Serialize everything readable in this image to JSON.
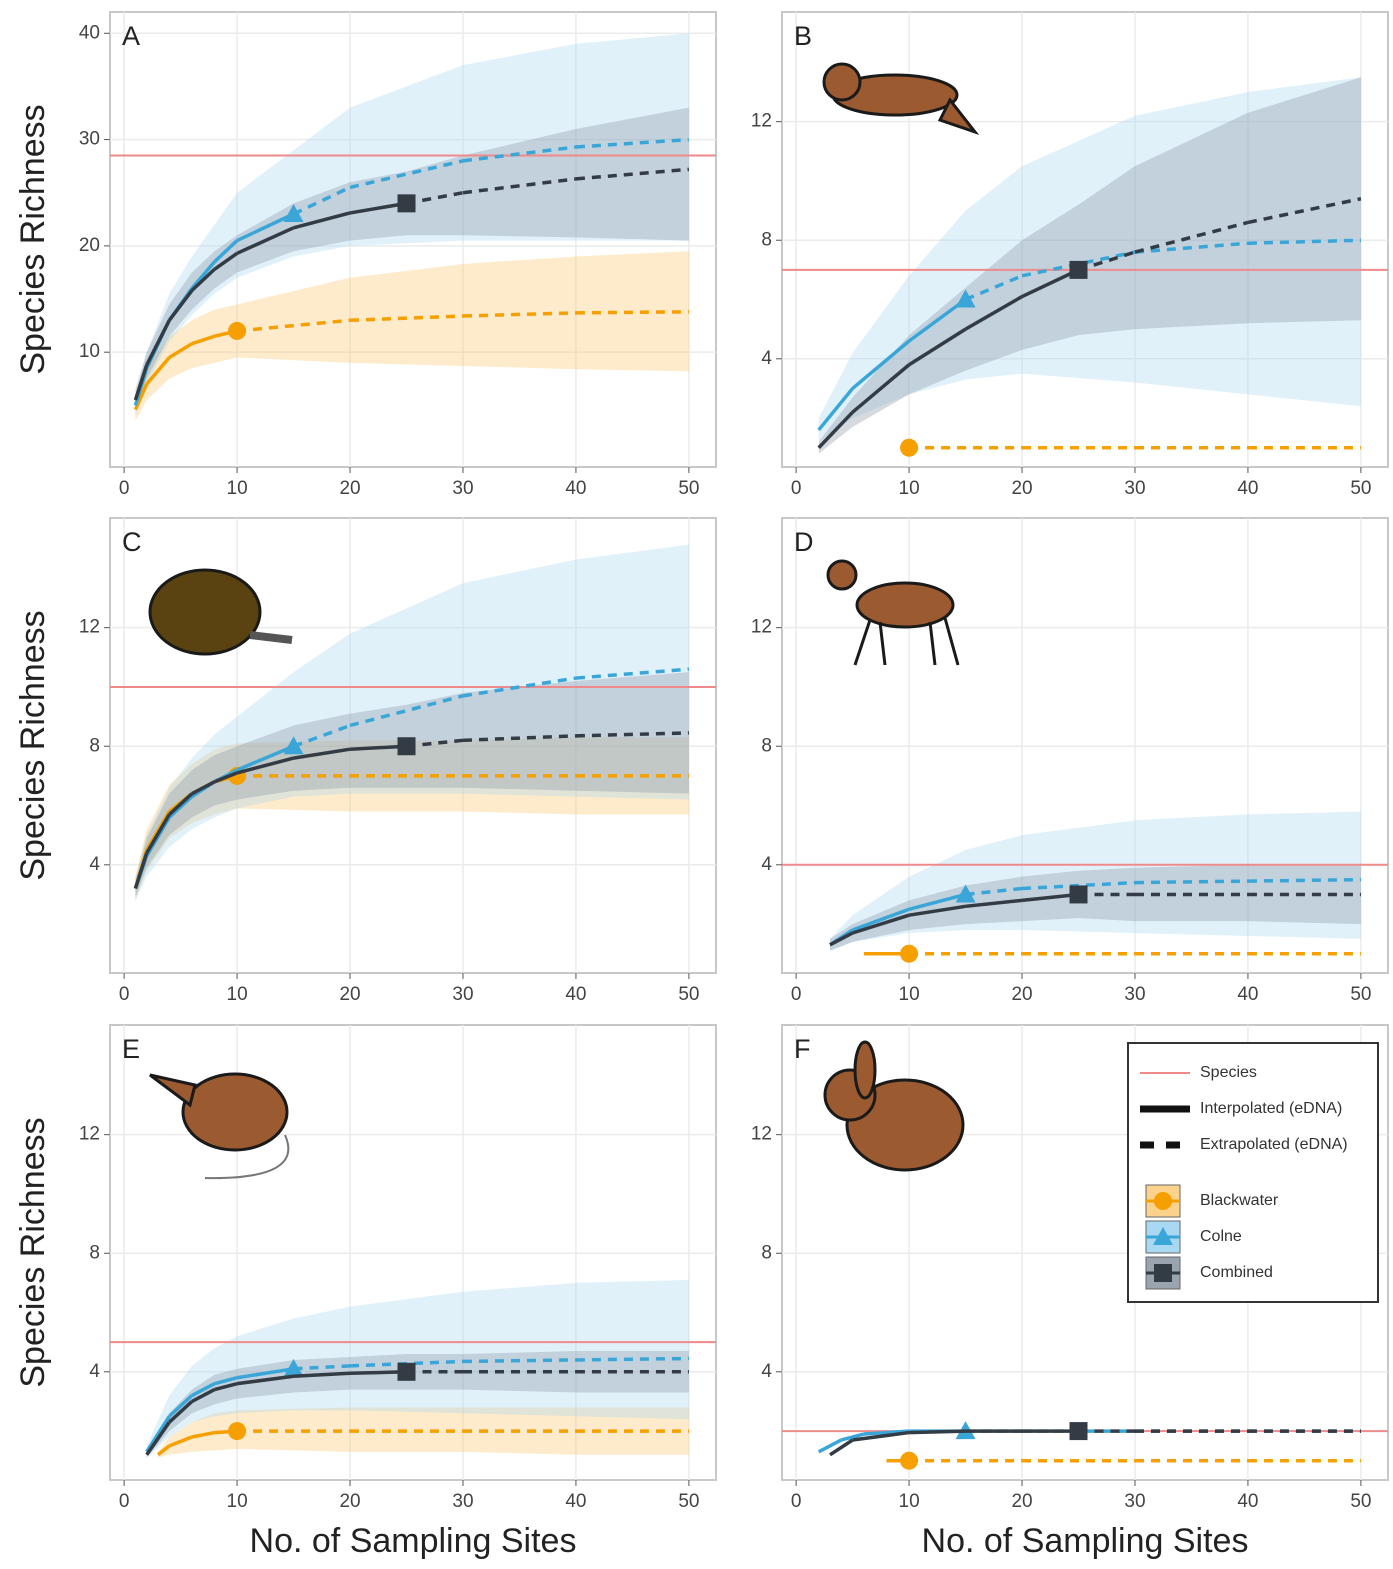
{
  "chart_data": [
    {
      "type": "line",
      "panel": "A",
      "ylabel": "Species Richness",
      "xlim": [
        -1.25,
        52.4
      ],
      "ylim": [
        -0.8,
        42
      ],
      "xticks": [
        0,
        10,
        20,
        30,
        40,
        50
      ],
      "yticks": [
        10,
        20,
        30,
        40
      ],
      "grid": true,
      "species": 28.5,
      "series": [
        {
          "color": "#f5a000",
          "band_color": "#fbc56a",
          "marker": "circle",
          "observed": 10,
          "x": [
            1,
            2,
            4,
            6,
            8,
            10,
            20,
            30,
            40,
            50
          ],
          "values": [
            4.6,
            7,
            9.5,
            10.8,
            11.5,
            12,
            13,
            13.4,
            13.7,
            13.8
          ],
          "lower": [
            3.5,
            5.5,
            7.5,
            8.5,
            9,
            9.5,
            9,
            8.7,
            8.4,
            8.2
          ],
          "upper": [
            5.8,
            8.5,
            11.5,
            13,
            14,
            14.5,
            17,
            18.3,
            19,
            19.5
          ]
        },
        {
          "color": "#3aa6d8",
          "band_color": "#a9d8f2",
          "marker": "triangle",
          "observed": 15,
          "x": [
            1,
            2,
            4,
            6,
            8,
            10,
            15,
            20,
            30,
            40,
            50
          ],
          "values": [
            5,
            8.5,
            13,
            16,
            18.5,
            20.5,
            23,
            25.5,
            28,
            29.3,
            30
          ],
          "lower": [
            4,
            7,
            11,
            13.5,
            15.5,
            17,
            19,
            20,
            20.5,
            20.5,
            20.5
          ],
          "upper": [
            6,
            10,
            15.5,
            19,
            22,
            25,
            29,
            33,
            37,
            39,
            40
          ]
        },
        {
          "color": "#333b45",
          "band_color": "#8a96a3",
          "marker": "square",
          "observed": 25,
          "x": [
            1,
            2,
            4,
            6,
            8,
            10,
            15,
            20,
            25,
            30,
            40,
            50
          ],
          "values": [
            5.5,
            8.8,
            13,
            15.8,
            17.8,
            19.3,
            21.7,
            23.1,
            24,
            25,
            26.3,
            27.2
          ],
          "lower": [
            4.5,
            7.5,
            11.5,
            14,
            16,
            17.5,
            19.5,
            20.5,
            21,
            21,
            20.8,
            20.5
          ],
          "upper": [
            6.5,
            10,
            14.5,
            17.5,
            19.5,
            21,
            24,
            26,
            27,
            28.5,
            31,
            33
          ]
        }
      ]
    },
    {
      "type": "line",
      "panel": "B",
      "xlim": [
        -1.25,
        52.4
      ],
      "ylim": [
        0.35,
        15.7
      ],
      "xticks": [
        0,
        10,
        20,
        30,
        40,
        50
      ],
      "yticks": [
        4,
        8,
        12
      ],
      "grid": true,
      "species": 7,
      "series": [
        {
          "color": "#f5a000",
          "marker": "circle",
          "observed": 10,
          "x": [
            10,
            20,
            30,
            40,
            50
          ],
          "values": [
            1,
            1,
            1,
            1,
            1
          ]
        },
        {
          "color": "#3aa6d8",
          "band_color": "#a9d8f2",
          "marker": "triangle",
          "observed": 15,
          "x": [
            2,
            5,
            10,
            15,
            20,
            30,
            40,
            50
          ],
          "values": [
            1.6,
            3,
            4.6,
            6,
            6.8,
            7.6,
            7.9,
            8
          ],
          "lower": [
            1.2,
            2,
            2.8,
            3.3,
            3.5,
            3.2,
            2.8,
            2.4
          ],
          "upper": [
            2,
            4.2,
            6.8,
            9,
            10.5,
            12.2,
            13,
            13.5
          ]
        },
        {
          "color": "#333b45",
          "band_color": "#8a96a3",
          "marker": "square",
          "observed": 25,
          "x": [
            2,
            5,
            10,
            15,
            20,
            25,
            30,
            40,
            50
          ],
          "values": [
            1,
            2.2,
            3.8,
            5,
            6.1,
            7,
            7.6,
            8.6,
            9.4
          ],
          "lower": [
            0.8,
            1.7,
            2.8,
            3.6,
            4.3,
            4.8,
            5,
            5.2,
            5.3
          ],
          "upper": [
            1.2,
            2.7,
            4.8,
            6.4,
            8,
            9.2,
            10.5,
            12.3,
            13.5
          ]
        }
      ]
    },
    {
      "type": "line",
      "panel": "C",
      "ylabel": "Species Richness",
      "xlim": [
        -1.25,
        52.4
      ],
      "ylim": [
        0.35,
        15.7
      ],
      "xticks": [
        0,
        10,
        20,
        30,
        40,
        50
      ],
      "yticks": [
        4,
        8,
        12
      ],
      "grid": true,
      "species": 10,
      "series": [
        {
          "color": "#f5a000",
          "band_color": "#fbc56a",
          "marker": "circle",
          "observed": 10,
          "x": [
            1,
            2,
            4,
            6,
            8,
            10,
            20,
            30,
            40,
            50
          ],
          "values": [
            3.2,
            4.5,
            5.8,
            6.4,
            6.8,
            7,
            7,
            7,
            7,
            7
          ],
          "lower": [
            2.8,
            3.8,
            4.9,
            5.4,
            5.7,
            5.9,
            5.8,
            5.8,
            5.7,
            5.7
          ],
          "upper": [
            3.6,
            5.2,
            6.7,
            7.4,
            7.9,
            8.1,
            8.2,
            8.2,
            8.3,
            8.3
          ]
        },
        {
          "color": "#3aa6d8",
          "band_color": "#a9d8f2",
          "marker": "triangle",
          "observed": 15,
          "x": [
            1,
            2,
            4,
            6,
            8,
            10,
            15,
            20,
            30,
            40,
            50
          ],
          "values": [
            3.2,
            4.3,
            5.6,
            6.3,
            6.8,
            7.2,
            8,
            8.7,
            9.7,
            10.3,
            10.6
          ],
          "lower": [
            2.8,
            3.6,
            4.6,
            5.2,
            5.6,
            5.9,
            6.3,
            6.4,
            6.4,
            6.3,
            6.2
          ],
          "upper": [
            3.6,
            5,
            6.6,
            7.6,
            8.4,
            9,
            10.5,
            11.8,
            13.5,
            14.3,
            14.8
          ]
        },
        {
          "color": "#333b45",
          "band_color": "#8a96a3",
          "marker": "square",
          "observed": 25,
          "x": [
            1,
            2,
            4,
            6,
            8,
            10,
            15,
            20,
            25,
            30,
            40,
            50
          ],
          "values": [
            3.2,
            4.4,
            5.7,
            6.4,
            6.8,
            7.1,
            7.6,
            7.9,
            8,
            8.2,
            8.35,
            8.45
          ],
          "lower": [
            2.9,
            3.9,
            5,
            5.6,
            6,
            6.2,
            6.5,
            6.6,
            6.6,
            6.6,
            6.5,
            6.4
          ],
          "upper": [
            3.5,
            4.9,
            6.4,
            7.2,
            7.7,
            8,
            8.7,
            9.1,
            9.4,
            9.8,
            10.2,
            10.5
          ]
        }
      ]
    },
    {
      "type": "line",
      "panel": "D",
      "xlim": [
        -1.25,
        52.4
      ],
      "ylim": [
        0.35,
        15.7
      ],
      "xticks": [
        0,
        10,
        20,
        30,
        40,
        50
      ],
      "yticks": [
        4,
        8,
        12
      ],
      "grid": true,
      "species": 4,
      "series": [
        {
          "color": "#f5a000",
          "marker": "circle",
          "observed": 10,
          "x": [
            6,
            10,
            20,
            30,
            40,
            50
          ],
          "values": [
            1,
            1,
            1,
            1,
            1,
            1
          ]
        },
        {
          "color": "#3aa6d8",
          "band_color": "#a9d8f2",
          "marker": "triangle",
          "observed": 15,
          "x": [
            3,
            5,
            10,
            15,
            20,
            30,
            40,
            50
          ],
          "values": [
            1.3,
            1.8,
            2.5,
            3,
            3.2,
            3.4,
            3.45,
            3.5
          ],
          "lower": [
            1.1,
            1.4,
            1.7,
            1.8,
            1.8,
            1.7,
            1.6,
            1.5
          ],
          "upper": [
            1.5,
            2.3,
            3.6,
            4.5,
            5,
            5.5,
            5.7,
            5.8
          ]
        },
        {
          "color": "#333b45",
          "band_color": "#8a96a3",
          "marker": "square",
          "observed": 25,
          "x": [
            3,
            5,
            10,
            15,
            20,
            25,
            30,
            40,
            50
          ],
          "values": [
            1.3,
            1.7,
            2.3,
            2.6,
            2.8,
            3,
            3,
            3,
            3
          ],
          "lower": [
            1.1,
            1.4,
            1.8,
            2,
            2.1,
            2.2,
            2.1,
            2.1,
            2
          ],
          "upper": [
            1.5,
            2,
            2.8,
            3.3,
            3.6,
            3.8,
            3.9,
            4,
            4
          ]
        }
      ]
    },
    {
      "type": "line",
      "panel": "E",
      "ylabel": "Species Richness",
      "xlabel": "No. of Sampling Sites",
      "xlim": [
        -1.25,
        52.4
      ],
      "ylim": [
        0.35,
        15.7
      ],
      "xticks": [
        0,
        10,
        20,
        30,
        40,
        50
      ],
      "yticks": [
        4,
        8,
        12
      ],
      "grid": true,
      "species": 5,
      "series": [
        {
          "color": "#f5a000",
          "band_color": "#fbc56a",
          "marker": "circle",
          "observed": 10,
          "x": [
            3,
            4,
            6,
            8,
            10,
            20,
            30,
            40,
            50
          ],
          "values": [
            1.2,
            1.5,
            1.8,
            1.95,
            2,
            2,
            2,
            2,
            2
          ],
          "lower": [
            1.1,
            1.2,
            1.3,
            1.35,
            1.4,
            1.3,
            1.3,
            1.2,
            1.2
          ],
          "upper": [
            1.3,
            1.8,
            2.3,
            2.6,
            2.7,
            2.8,
            2.8,
            2.8,
            2.8
          ]
        },
        {
          "color": "#3aa6d8",
          "band_color": "#a9d8f2",
          "marker": "triangle",
          "observed": 15,
          "x": [
            2,
            4,
            6,
            8,
            10,
            15,
            20,
            30,
            40,
            50
          ],
          "values": [
            1.3,
            2.5,
            3.2,
            3.6,
            3.8,
            4.1,
            4.2,
            4.35,
            4.4,
            4.45
          ],
          "lower": [
            1.1,
            1.8,
            2.3,
            2.5,
            2.6,
            2.7,
            2.7,
            2.6,
            2.5,
            2.4
          ],
          "upper": [
            1.5,
            3.2,
            4.2,
            4.8,
            5.2,
            5.8,
            6.2,
            6.7,
            7,
            7.1
          ]
        },
        {
          "color": "#333b45",
          "band_color": "#8a96a3",
          "marker": "square",
          "observed": 25,
          "x": [
            2,
            4,
            6,
            8,
            10,
            15,
            20,
            25,
            30,
            40,
            50
          ],
          "values": [
            1.2,
            2.3,
            3,
            3.4,
            3.6,
            3.85,
            3.95,
            4,
            4,
            4,
            4
          ],
          "lower": [
            1.1,
            2,
            2.6,
            2.9,
            3.1,
            3.3,
            3.4,
            3.4,
            3.4,
            3.3,
            3.3
          ],
          "upper": [
            1.3,
            2.6,
            3.4,
            3.9,
            4.1,
            4.4,
            4.5,
            4.6,
            4.6,
            4.7,
            4.7
          ]
        }
      ]
    },
    {
      "type": "line",
      "panel": "F",
      "xlabel": "No. of Sampling Sites",
      "xlim": [
        -1.25,
        52.4
      ],
      "ylim": [
        0.35,
        15.7
      ],
      "xticks": [
        0,
        10,
        20,
        30,
        40,
        50
      ],
      "yticks": [
        4,
        8,
        12
      ],
      "grid": true,
      "species": 2,
      "legend": {
        "position": "top-right",
        "species": "Species",
        "interpolated": "Interpolated (eDNA)",
        "extrapolated": "Extrapolated (eDNA)"
      },
      "series": [
        {
          "name": "Blackwater",
          "color": "#f5a000",
          "marker": "circle",
          "observed": 10,
          "x": [
            8,
            10,
            20,
            30,
            40,
            50
          ],
          "values": [
            1,
            1,
            1,
            1,
            1,
            1
          ]
        },
        {
          "name": "Colne",
          "color": "#3aa6d8",
          "marker": "triangle",
          "observed": 15,
          "x": [
            2,
            4,
            6,
            10,
            15,
            20,
            30,
            40,
            50
          ],
          "values": [
            1.3,
            1.7,
            1.9,
            2,
            2,
            2,
            2,
            2,
            2
          ]
        },
        {
          "name": "Combined",
          "color": "#333b45",
          "marker": "square",
          "observed": 25,
          "x": [
            3,
            5,
            10,
            15,
            20,
            25,
            30,
            40,
            50
          ],
          "values": [
            1.2,
            1.7,
            1.95,
            2,
            2,
            2,
            2,
            2,
            2
          ]
        }
      ]
    }
  ]
}
